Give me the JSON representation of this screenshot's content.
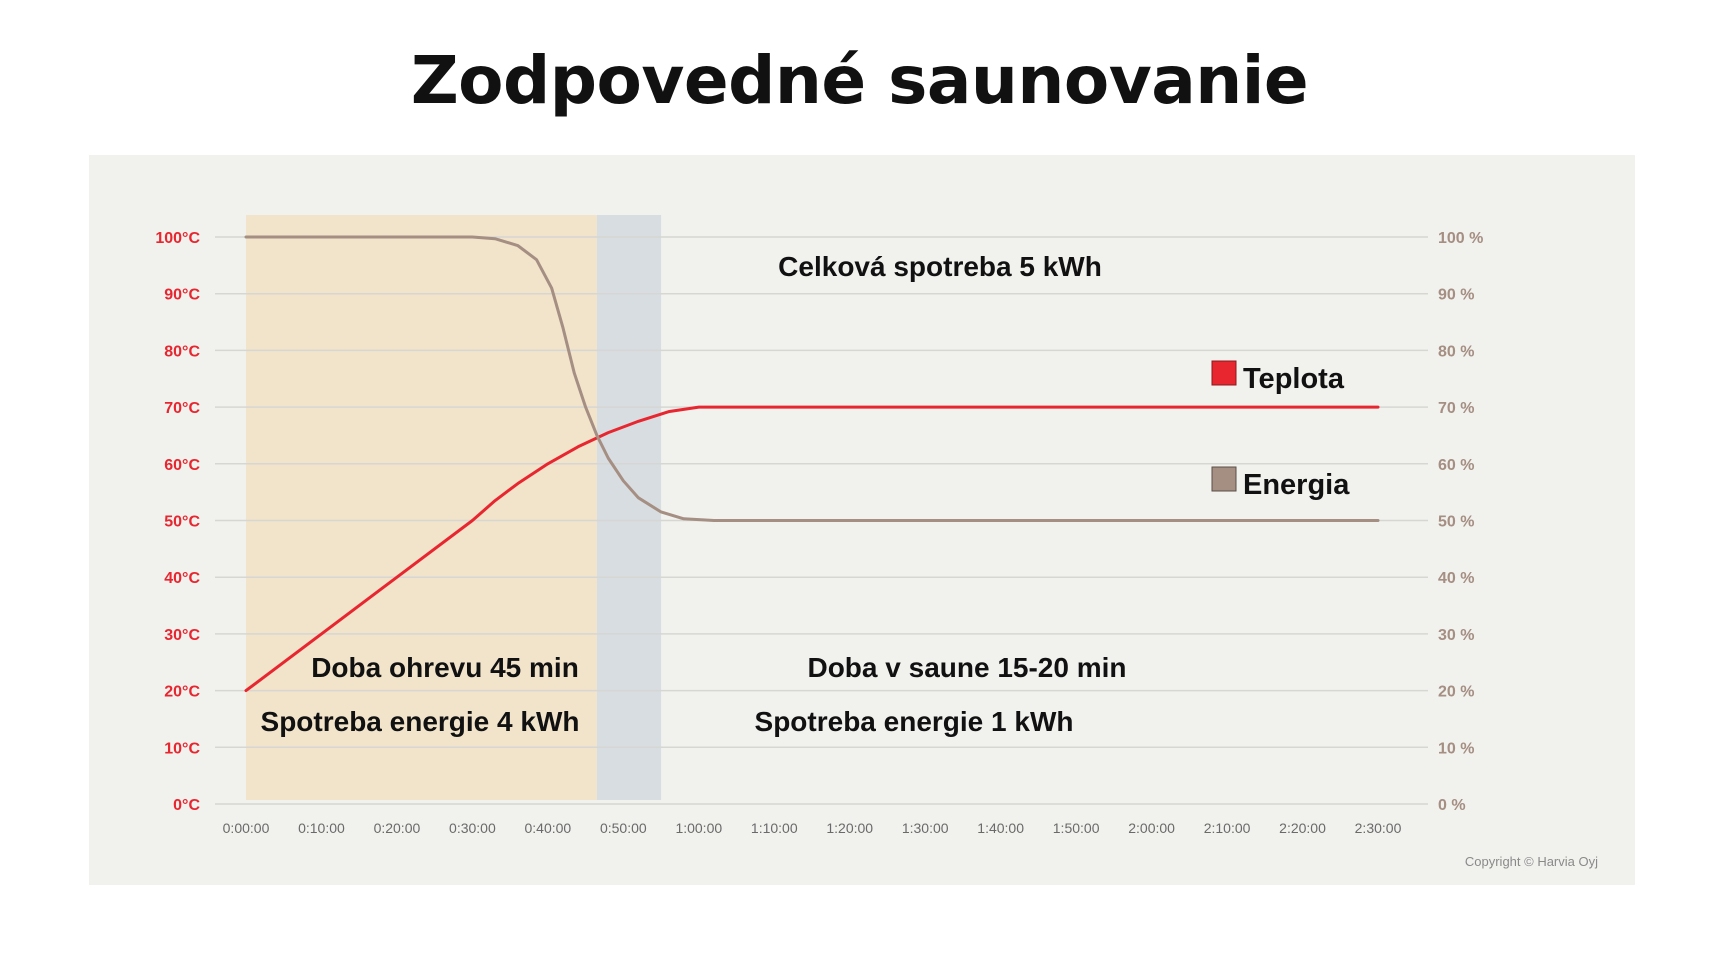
{
  "page": {
    "title": "Zodpovedné saunovanie"
  },
  "chart_data": {
    "type": "line",
    "title": "Zodpovedné saunovanie",
    "x_ticks": [
      "0:00:00",
      "0:10:00",
      "0:20:00",
      "0:30:00",
      "0:40:00",
      "0:50:00",
      "1:00:00",
      "1:10:00",
      "1:20:00",
      "1:30:00",
      "1:40:00",
      "1:50:00",
      "2:00:00",
      "2:10:00",
      "2:20:00",
      "2:30:00"
    ],
    "x_minutes": [
      0,
      10,
      20,
      30,
      40,
      50,
      60,
      70,
      80,
      90,
      100,
      110,
      120,
      130,
      140,
      150
    ],
    "xlim_minutes": [
      0,
      150
    ],
    "y_left": {
      "ticks": [
        "0°C",
        "10°C",
        "20°C",
        "30°C",
        "40°C",
        "50°C",
        "60°C",
        "70°C",
        "80°C",
        "90°C",
        "100°C"
      ],
      "values": [
        0,
        10,
        20,
        30,
        40,
        50,
        60,
        70,
        80,
        90,
        100
      ],
      "ylim": [
        0,
        100
      ],
      "color": "#e8262f"
    },
    "y_right": {
      "ticks": [
        "0 %",
        "10 %",
        "20 %",
        "30 %",
        "40 %",
        "50 %",
        "60 %",
        "70 %",
        "80 %",
        "90 %",
        "100 %"
      ],
      "values": [
        0,
        10,
        20,
        30,
        40,
        50,
        60,
        70,
        80,
        90,
        100
      ],
      "ylim": [
        0,
        100
      ],
      "color": "#a58e82"
    },
    "grid": true,
    "shaded_regions": [
      {
        "start_minutes": 0,
        "end_minutes": 46.5,
        "color": "#f2e3cb"
      },
      {
        "start_minutes": 46.5,
        "end_minutes": 55,
        "color": "#d8dde2"
      }
    ],
    "series": [
      {
        "name": "Teplota",
        "axis": "left",
        "color": "#e8262f",
        "points": [
          [
            0,
            20
          ],
          [
            10,
            30
          ],
          [
            20,
            40
          ],
          [
            30,
            50
          ],
          [
            33,
            53.5
          ],
          [
            36,
            56.5
          ],
          [
            40,
            60
          ],
          [
            44,
            63
          ],
          [
            48,
            65.5
          ],
          [
            52,
            67.5
          ],
          [
            56,
            69.2
          ],
          [
            60,
            70
          ],
          [
            150,
            70
          ]
        ]
      },
      {
        "name": "Energia",
        "axis": "right",
        "color": "#a58e82",
        "points": [
          [
            0,
            100
          ],
          [
            30,
            100
          ],
          [
            33,
            99.7
          ],
          [
            36,
            98.5
          ],
          [
            38.5,
            96
          ],
          [
            40.5,
            91
          ],
          [
            42,
            84
          ],
          [
            43.5,
            76
          ],
          [
            45,
            70
          ],
          [
            46.5,
            65
          ],
          [
            48,
            61
          ],
          [
            50,
            57
          ],
          [
            52,
            54
          ],
          [
            55,
            51.5
          ],
          [
            58,
            50.3
          ],
          [
            62,
            50
          ],
          [
            150,
            50
          ]
        ]
      }
    ],
    "legend": {
      "placement": "right",
      "items": [
        {
          "label": "Teplota",
          "color": "#e8262f"
        },
        {
          "label": "Energia",
          "color": "#a58e82"
        }
      ]
    },
    "annotations": {
      "total": "Celková spotreba 5 kWh",
      "heat_time": "Doba ohrevu 45 min",
      "heat_energy": "Spotreba energie 4 kWh",
      "sauna_time": "Doba v saune 15-20 min",
      "sauna_energy": "Spotreba energie 1 kWh"
    },
    "copyright": "Copyright © Harvia Oyj"
  }
}
